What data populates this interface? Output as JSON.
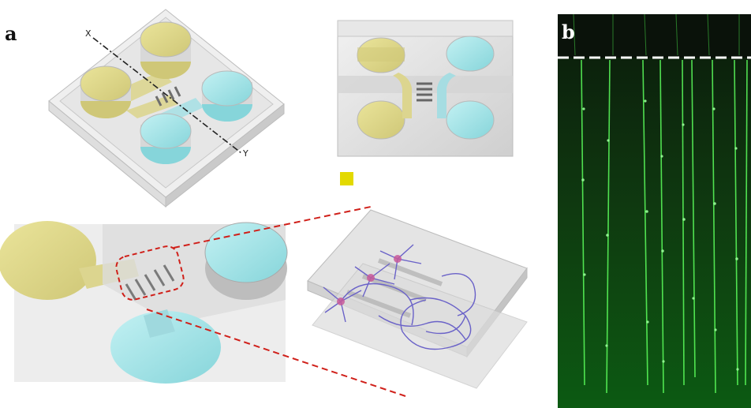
{
  "panel_a": {
    "label": "a",
    "axis_x_label": "X",
    "axis_y_label": "Y"
  },
  "panel_b": {
    "label": "b"
  },
  "colors": {
    "yellow_fill": "#e3de8a",
    "cyan_fill": "#9fe3e6",
    "legend_swatch": "#e3d900",
    "neuron_purple": "#6a62c8",
    "soma_pink": "#c85a9a",
    "zoom_dash_red": "#d0201a",
    "axon_green": "#4cff4c"
  },
  "icons": [
    "yellow-square-swatch"
  ]
}
